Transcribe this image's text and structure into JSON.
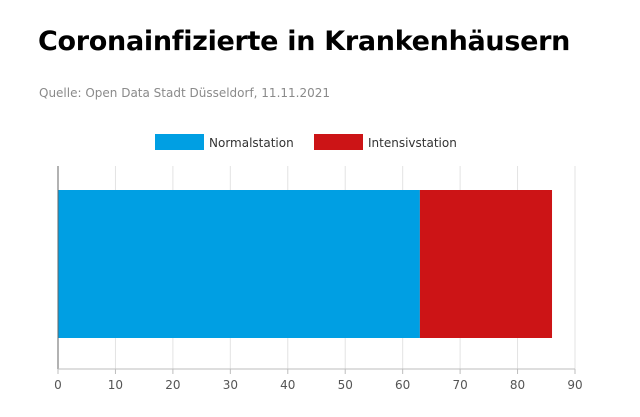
{
  "title": "Coronainfizierte in Krankenhäusern",
  "source": "Quelle: Open Data Stadt Düsseldorf, 11.11.2021",
  "chart_data": {
    "type": "bar",
    "orientation": "horizontal",
    "stacked": true,
    "categories": [
      ""
    ],
    "series": [
      {
        "name": "Normalstation",
        "values": [
          63
        ],
        "color": "#009fe3"
      },
      {
        "name": "Intensivstation",
        "values": [
          23
        ],
        "color": "#cc1416"
      }
    ],
    "xlim": [
      0,
      90
    ],
    "xticks": [
      0,
      10,
      20,
      30,
      40,
      50,
      60,
      70,
      80,
      90
    ],
    "grid": true,
    "legend": "top-center"
  }
}
